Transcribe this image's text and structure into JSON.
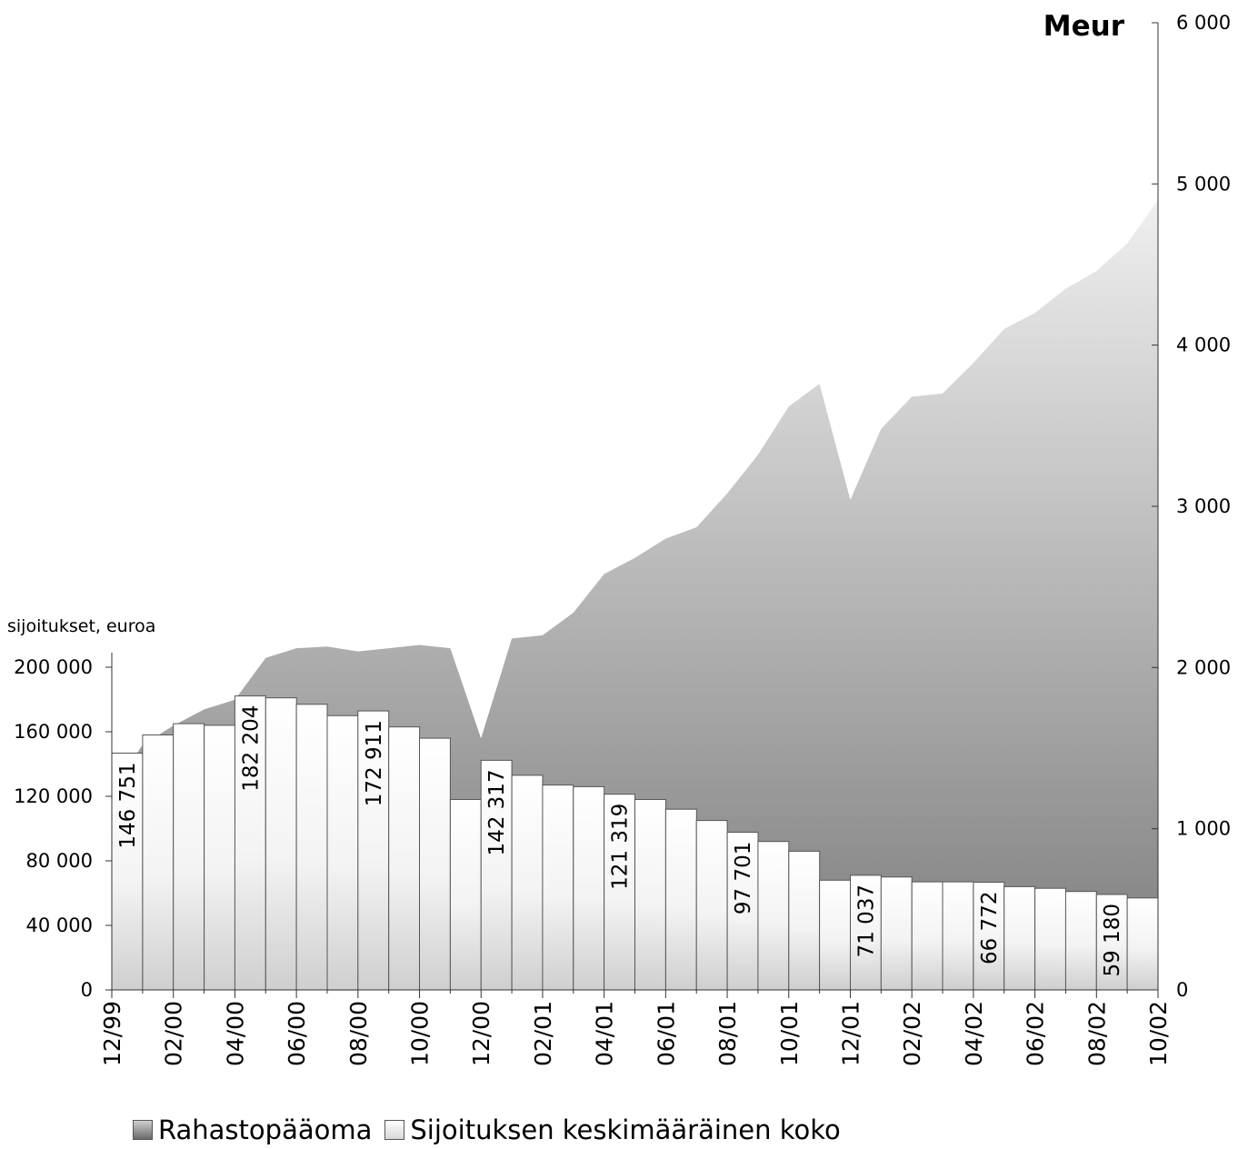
{
  "chart_data": {
    "type": "bar+area",
    "x": [
      "12/99",
      "01/00",
      "02/00",
      "03/00",
      "04/00",
      "05/00",
      "06/00",
      "07/00",
      "08/00",
      "09/00",
      "10/00",
      "11/00",
      "12/00",
      "01/01",
      "02/01",
      "03/01",
      "04/01",
      "05/01",
      "06/01",
      "07/01",
      "08/01",
      "09/01",
      "10/01",
      "11/01",
      "12/01",
      "01/02",
      "02/02",
      "03/02",
      "04/02",
      "05/02",
      "06/02",
      "07/02",
      "08/02",
      "09/02",
      "10/02"
    ],
    "x_tick_labels": [
      "12/99",
      "02/00",
      "04/00",
      "06/00",
      "08/00",
      "10/00",
      "12/00",
      "02/01",
      "04/01",
      "06/01",
      "08/01",
      "10/01",
      "12/01",
      "02/02",
      "04/02",
      "06/02",
      "08/02",
      "10/02"
    ],
    "series": [
      {
        "name": "Rahastopääoma",
        "kind": "area",
        "axis": "right",
        "values": [
          1240,
          1520,
          1640,
          1740,
          1800,
          2060,
          2120,
          2130,
          2100,
          2120,
          2140,
          2120,
          1560,
          2180,
          2200,
          2340,
          2580,
          2680,
          2800,
          2870,
          3080,
          3320,
          3620,
          3760,
          3040,
          3480,
          3680,
          3700,
          3890,
          4100,
          4200,
          4350,
          4460,
          4630,
          4900
        ]
      },
      {
        "name": "Sijoituksen keskimääräinen koko",
        "kind": "bar",
        "axis": "left",
        "values": [
          null,
          146751,
          158000,
          165000,
          164000,
          182204,
          181000,
          177000,
          170000,
          172911,
          163000,
          156000,
          118000,
          142317,
          133000,
          127000,
          126000,
          121319,
          118000,
          112000,
          105000,
          97701,
          92000,
          86000,
          68000,
          71037,
          70000,
          67000,
          67000,
          66772,
          64000,
          63000,
          61000,
          59180,
          57000
        ]
      }
    ],
    "bar_labels": [
      {
        "index": 1,
        "text": "146 751"
      },
      {
        "index": 5,
        "text": "182 204"
      },
      {
        "index": 9,
        "text": "172 911"
      },
      {
        "index": 13,
        "text": "142 317"
      },
      {
        "index": 17,
        "text": "121 319"
      },
      {
        "index": 21,
        "text": "97 701"
      },
      {
        "index": 25,
        "text": "71 037"
      },
      {
        "index": 29,
        "text": "66 772"
      },
      {
        "index": 33,
        "text": "59 180"
      }
    ],
    "left_axis": {
      "label": "sijoitukset, euroa",
      "ylim": [
        0,
        200000
      ],
      "ticks": [
        0,
        40000,
        80000,
        120000,
        160000,
        200000
      ],
      "tick_labels": [
        "0",
        "40 000",
        "80 000",
        "120 000",
        "160 000",
        "200 000"
      ]
    },
    "right_axis": {
      "label": "Meur",
      "ylim": [
        0,
        6000
      ],
      "ticks": [
        0,
        1000,
        2000,
        3000,
        4000,
        5000,
        6000
      ],
      "tick_labels": [
        "0",
        "1 000",
        "2 000",
        "3 000",
        "4 000",
        "5 000",
        "6 000"
      ]
    },
    "grid": false,
    "legend_position": "bottom"
  },
  "legend": {
    "area_label": "Rahastopääoma",
    "bar_label": "Sijoituksen keskimääräinen koko"
  }
}
